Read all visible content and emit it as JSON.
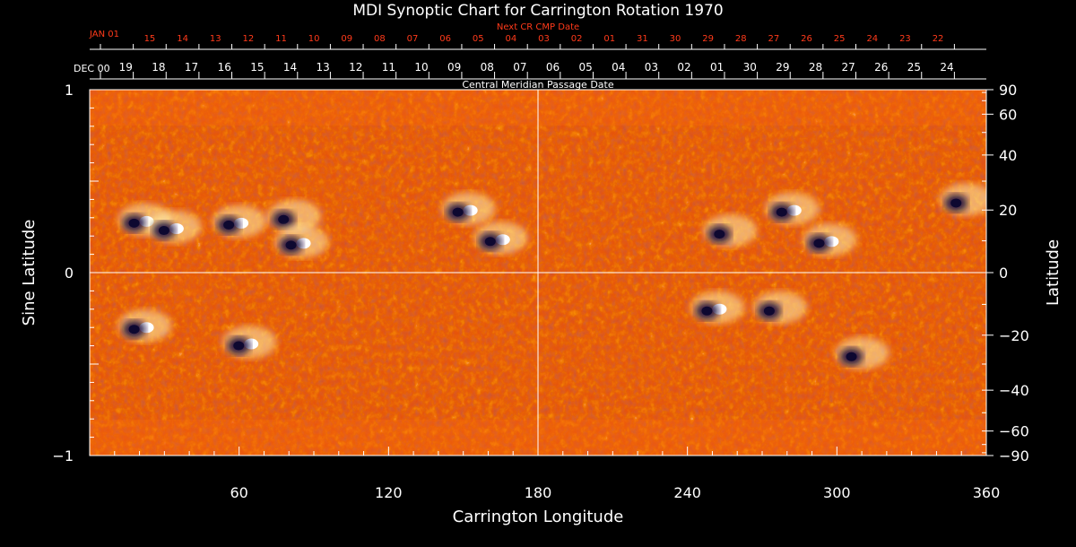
{
  "chart_data": {
    "type": "heatmap",
    "title": "MDI Synoptic Chart for Carrington Rotation 1970",
    "xlabel": "Carrington Longitude",
    "ylabel_left": "Sine Latitude",
    "ylabel_right": "Latitude",
    "top_axis_label": "Central Meridian Passage Date",
    "top_red_label": "Next CR CMP Date",
    "xlim": [
      0,
      360
    ],
    "ylim": [
      -1,
      1
    ],
    "x_ticks": [
      60,
      120,
      180,
      240,
      300,
      360
    ],
    "y_ticks_left": [
      {
        "value": 1,
        "label": "1"
      },
      {
        "value": 0,
        "label": "0"
      },
      {
        "value": -1,
        "label": "−1"
      }
    ],
    "latitude_ticks": [
      {
        "lat": 90,
        "label": "90"
      },
      {
        "lat": 60,
        "label": "60"
      },
      {
        "lat": 40,
        "label": "40"
      },
      {
        "lat": 20,
        "label": "20"
      },
      {
        "lat": 0,
        "label": "0"
      },
      {
        "lat": -20,
        "label": "−20"
      },
      {
        "lat": -40,
        "label": "−40"
      },
      {
        "lat": -60,
        "label": "−60"
      },
      {
        "lat": -90,
        "label": "−90"
      }
    ],
    "cmp_dates_start_label": "DEC 00",
    "cmp_dates": [
      "19",
      "18",
      "17",
      "16",
      "15",
      "14",
      "13",
      "12",
      "11",
      "10",
      "09",
      "08",
      "07",
      "06",
      "05",
      "04",
      "03",
      "02",
      "01",
      "30",
      "29",
      "28",
      "27",
      "26",
      "25",
      "24"
    ],
    "next_cr_start_label": "JAN 01",
    "next_cr_dates": [
      "15",
      "14",
      "13",
      "12",
      "11",
      "10",
      "09",
      "08",
      "07",
      "06",
      "05",
      "04",
      "03",
      "02",
      "01",
      "31",
      "30",
      "29",
      "28",
      "27",
      "26",
      "25",
      "24",
      "23",
      "22"
    ],
    "colorscale": [
      "#1a1040",
      "#c92a10",
      "#ff5a00",
      "#ffe890"
    ],
    "active_regions": [
      {
        "lon": 20,
        "sinlat": 0.28,
        "polarity": "mixed"
      },
      {
        "lon": 32,
        "sinlat": 0.24,
        "polarity": "mixed"
      },
      {
        "lon": 58,
        "sinlat": 0.27,
        "polarity": "mixed"
      },
      {
        "lon": 80,
        "sinlat": 0.3,
        "polarity": "negative"
      },
      {
        "lon": 83,
        "sinlat": 0.16,
        "polarity": "mixed"
      },
      {
        "lon": 163,
        "sinlat": 0.18,
        "polarity": "mixed"
      },
      {
        "lon": 150,
        "sinlat": 0.34,
        "polarity": "mixed"
      },
      {
        "lon": 255,
        "sinlat": 0.22,
        "polarity": "negative"
      },
      {
        "lon": 280,
        "sinlat": 0.34,
        "polarity": "mixed"
      },
      {
        "lon": 295,
        "sinlat": 0.17,
        "polarity": "mixed"
      },
      {
        "lon": 350,
        "sinlat": 0.39,
        "polarity": "negative"
      },
      {
        "lon": 62,
        "sinlat": -0.39,
        "polarity": "mixed"
      },
      {
        "lon": 20,
        "sinlat": -0.3,
        "polarity": "mixed"
      },
      {
        "lon": 250,
        "sinlat": -0.2,
        "polarity": "mixed"
      },
      {
        "lon": 308,
        "sinlat": -0.45,
        "polarity": "negative"
      },
      {
        "lon": 275,
        "sinlat": -0.2,
        "polarity": "negative"
      }
    ]
  }
}
